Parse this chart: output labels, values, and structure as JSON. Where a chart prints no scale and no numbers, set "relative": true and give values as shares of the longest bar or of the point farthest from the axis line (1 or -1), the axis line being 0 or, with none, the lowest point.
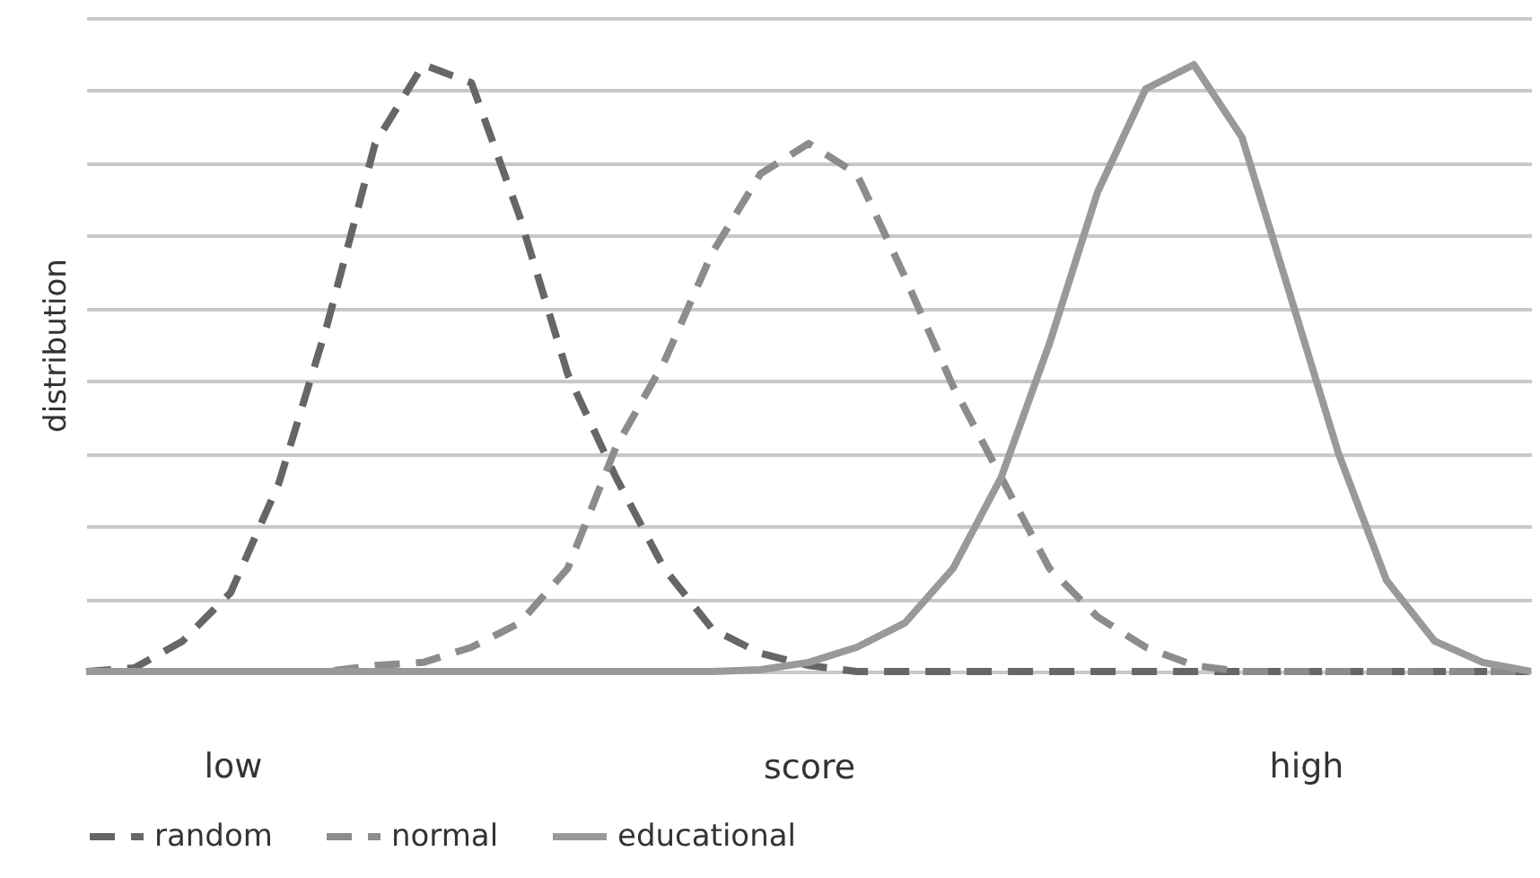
{
  "chart_data": {
    "type": "line",
    "relative": true,
    "ylabel": "distribution",
    "xlabel": "score",
    "annotations": [
      "low",
      "high"
    ],
    "categories": [
      null,
      null,
      null,
      null,
      null,
      null,
      null,
      null,
      null,
      null,
      null,
      null,
      null,
      null,
      null,
      null,
      null,
      null,
      null,
      null,
      null,
      null,
      null,
      null,
      null,
      null,
      null,
      null,
      null,
      null,
      null
    ],
    "grid": "y",
    "legend": "bottom",
    "marker": "none",
    "series": [
      {
        "name": "random",
        "color": "#666666",
        "line_style": "dashed",
        "values": [
          0,
          0.006,
          0.05,
          0.13,
          0.31,
          0.57,
          0.87,
          1.0,
          0.97,
          0.75,
          0.49,
          0.32,
          0.17,
          0.07,
          0.03,
          0.01,
          0,
          0,
          0,
          0,
          0,
          0,
          0,
          0,
          0,
          0,
          0,
          0,
          0,
          0,
          0
        ]
      },
      {
        "name": "normal",
        "color": "#8c8c8c",
        "line_style": "dashed",
        "values": [
          0,
          0,
          0,
          0,
          0,
          0,
          0.01,
          0.015,
          0.04,
          0.08,
          0.17,
          0.37,
          0.51,
          0.69,
          0.82,
          0.87,
          0.82,
          0.65,
          0.47,
          0.32,
          0.17,
          0.09,
          0.04,
          0.01,
          0,
          0,
          0,
          0,
          0,
          0,
          0
        ]
      },
      {
        "name": "educational",
        "color": "#999999",
        "line_style": "solid",
        "values": [
          0,
          0,
          0,
          0,
          0,
          0,
          0,
          0,
          0,
          0,
          0,
          0,
          0,
          0,
          0.003,
          0.015,
          0.04,
          0.08,
          0.17,
          0.32,
          0.54,
          0.79,
          0.96,
          1.0,
          0.88,
          0.62,
          0.36,
          0.15,
          0.05,
          0.015,
          0
        ]
      }
    ]
  }
}
